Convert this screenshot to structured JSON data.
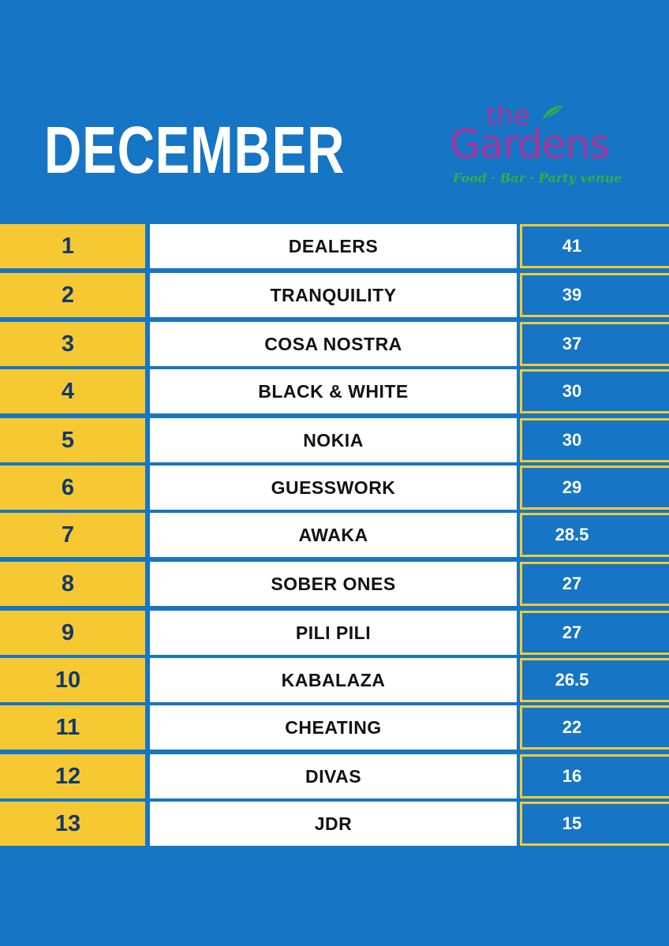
{
  "header": {
    "title": "DECEMBER"
  },
  "logo": {
    "the": "the",
    "name": "Gardens",
    "tagline": "Food · Bar · Party venue"
  },
  "colors": {
    "background": "#1675c4",
    "rank_cell": "#f6c932",
    "rank_text": "#12386b",
    "team_cell": "#ffffff",
    "logo_purple": "#a6359a",
    "logo_green": "#2eb04a"
  },
  "standings": [
    {
      "rank": "1",
      "team": "DEALERS",
      "score": "41"
    },
    {
      "rank": "2",
      "team": "TRANQUILITY",
      "score": "39"
    },
    {
      "rank": "3",
      "team": "COSA NOSTRA",
      "score": "37"
    },
    {
      "rank": "4",
      "team": "BLACK & WHITE",
      "score": "30"
    },
    {
      "rank": "5",
      "team": "NOKIA",
      "score": "30"
    },
    {
      "rank": "6",
      "team": "GUESSWORK",
      "score": "29"
    },
    {
      "rank": "7",
      "team": "AWAKA",
      "score": "28.5"
    },
    {
      "rank": "8",
      "team": "SOBER ONES",
      "score": "27"
    },
    {
      "rank": "9",
      "team": "PILI PILI",
      "score": "27"
    },
    {
      "rank": "10",
      "team": "KABALAZA",
      "score": "26.5"
    },
    {
      "rank": "11",
      "team": "CHEATING",
      "score": "22"
    },
    {
      "rank": "12",
      "team": "DIVAS",
      "score": "16"
    },
    {
      "rank": "13",
      "team": "JDR",
      "score": "15"
    }
  ]
}
